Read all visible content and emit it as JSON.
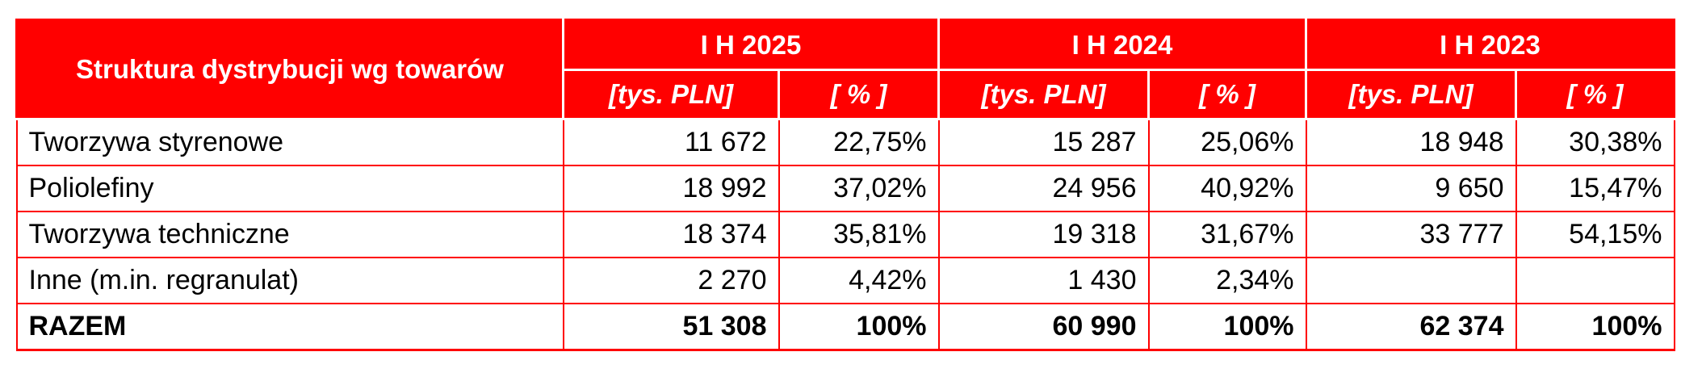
{
  "table": {
    "title": "Struktura dystrybucji wg towarów",
    "periods": [
      "I H 2025",
      "I H 2024",
      "I H 2023"
    ],
    "units": [
      "[tys. PLN]",
      "[ % ]"
    ],
    "rows": [
      {
        "label": "Tworzywa styrenowe",
        "values": [
          "11 672",
          "22,75%",
          "15 287",
          "25,06%",
          "18 948",
          "30,38%"
        ]
      },
      {
        "label": "Poliolefiny",
        "values": [
          "18 992",
          "37,02%",
          "24 956",
          "40,92%",
          "9 650",
          "15,47%"
        ]
      },
      {
        "label": "Tworzywa techniczne",
        "values": [
          "18 374",
          "35,81%",
          "19 318",
          "31,67%",
          "33 777",
          "54,15%"
        ]
      },
      {
        "label": "Inne (m.in. regranulat)",
        "values": [
          "2 270",
          "4,42%",
          "1 430",
          "2,34%",
          "",
          ""
        ]
      }
    ],
    "total": {
      "label": "RAZEM",
      "values": [
        "51 308",
        "100%",
        "60 990",
        "100%",
        "62 374",
        "100%"
      ]
    }
  },
  "colors": {
    "header_bg": "#ff0000",
    "header_text": "#ffffff",
    "border": "#ff0000"
  }
}
